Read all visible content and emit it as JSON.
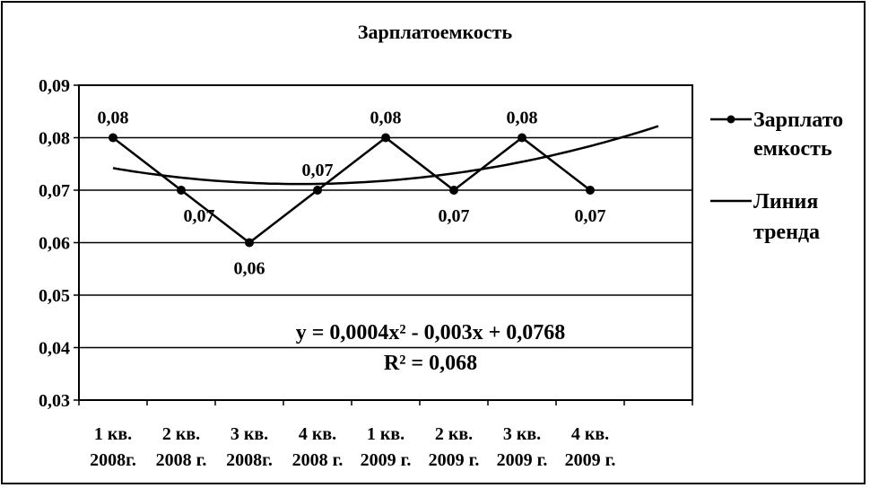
{
  "chart_data": {
    "type": "line",
    "title": "Зарплатоемкость",
    "categories": [
      [
        "1 кв.",
        "2008г."
      ],
      [
        "2 кв.",
        "2008 г."
      ],
      [
        "3 кв.",
        "2008г."
      ],
      [
        "4 кв.",
        "2008 г."
      ],
      [
        "1 кв.",
        "2009 г."
      ],
      [
        "2 кв.",
        "2009 г."
      ],
      [
        "3 кв.",
        "2009 г."
      ],
      [
        "4 кв.",
        "2009 г."
      ]
    ],
    "ylim": [
      0.03,
      0.09
    ],
    "yticks": [
      0.03,
      0.04,
      0.05,
      0.06,
      0.07,
      0.08,
      0.09
    ],
    "ytick_labels": [
      "0,03",
      "0,04",
      "0,05",
      "0,06",
      "0,07",
      "0,08",
      "0,09"
    ],
    "grid": true,
    "legend_position": "right",
    "series": [
      {
        "name": "Зарплатоемкость",
        "legend_lines": [
          "Зарплато",
          "емкость"
        ],
        "values": [
          0.08,
          0.07,
          0.06,
          0.07,
          0.08,
          0.07,
          0.08,
          0.07
        ],
        "data_labels": [
          "0,08",
          "0,07",
          "0,06",
          "0,07",
          "0,08",
          "0,07",
          "0,08",
          "0,07"
        ],
        "marker": "circle",
        "color": "#000000"
      }
    ],
    "trendline": {
      "name": "Линия тренда",
      "legend_lines": [
        "Линия",
        "тренда"
      ],
      "type": "polynomial",
      "coefficients": [
        0.0004,
        -0.003,
        0.0768
      ],
      "forward_periods": 1,
      "equation": "y = 0,0004x² - 0,003x + 0,0768",
      "r2": "R² = 0,068",
      "color": "#000000"
    }
  }
}
